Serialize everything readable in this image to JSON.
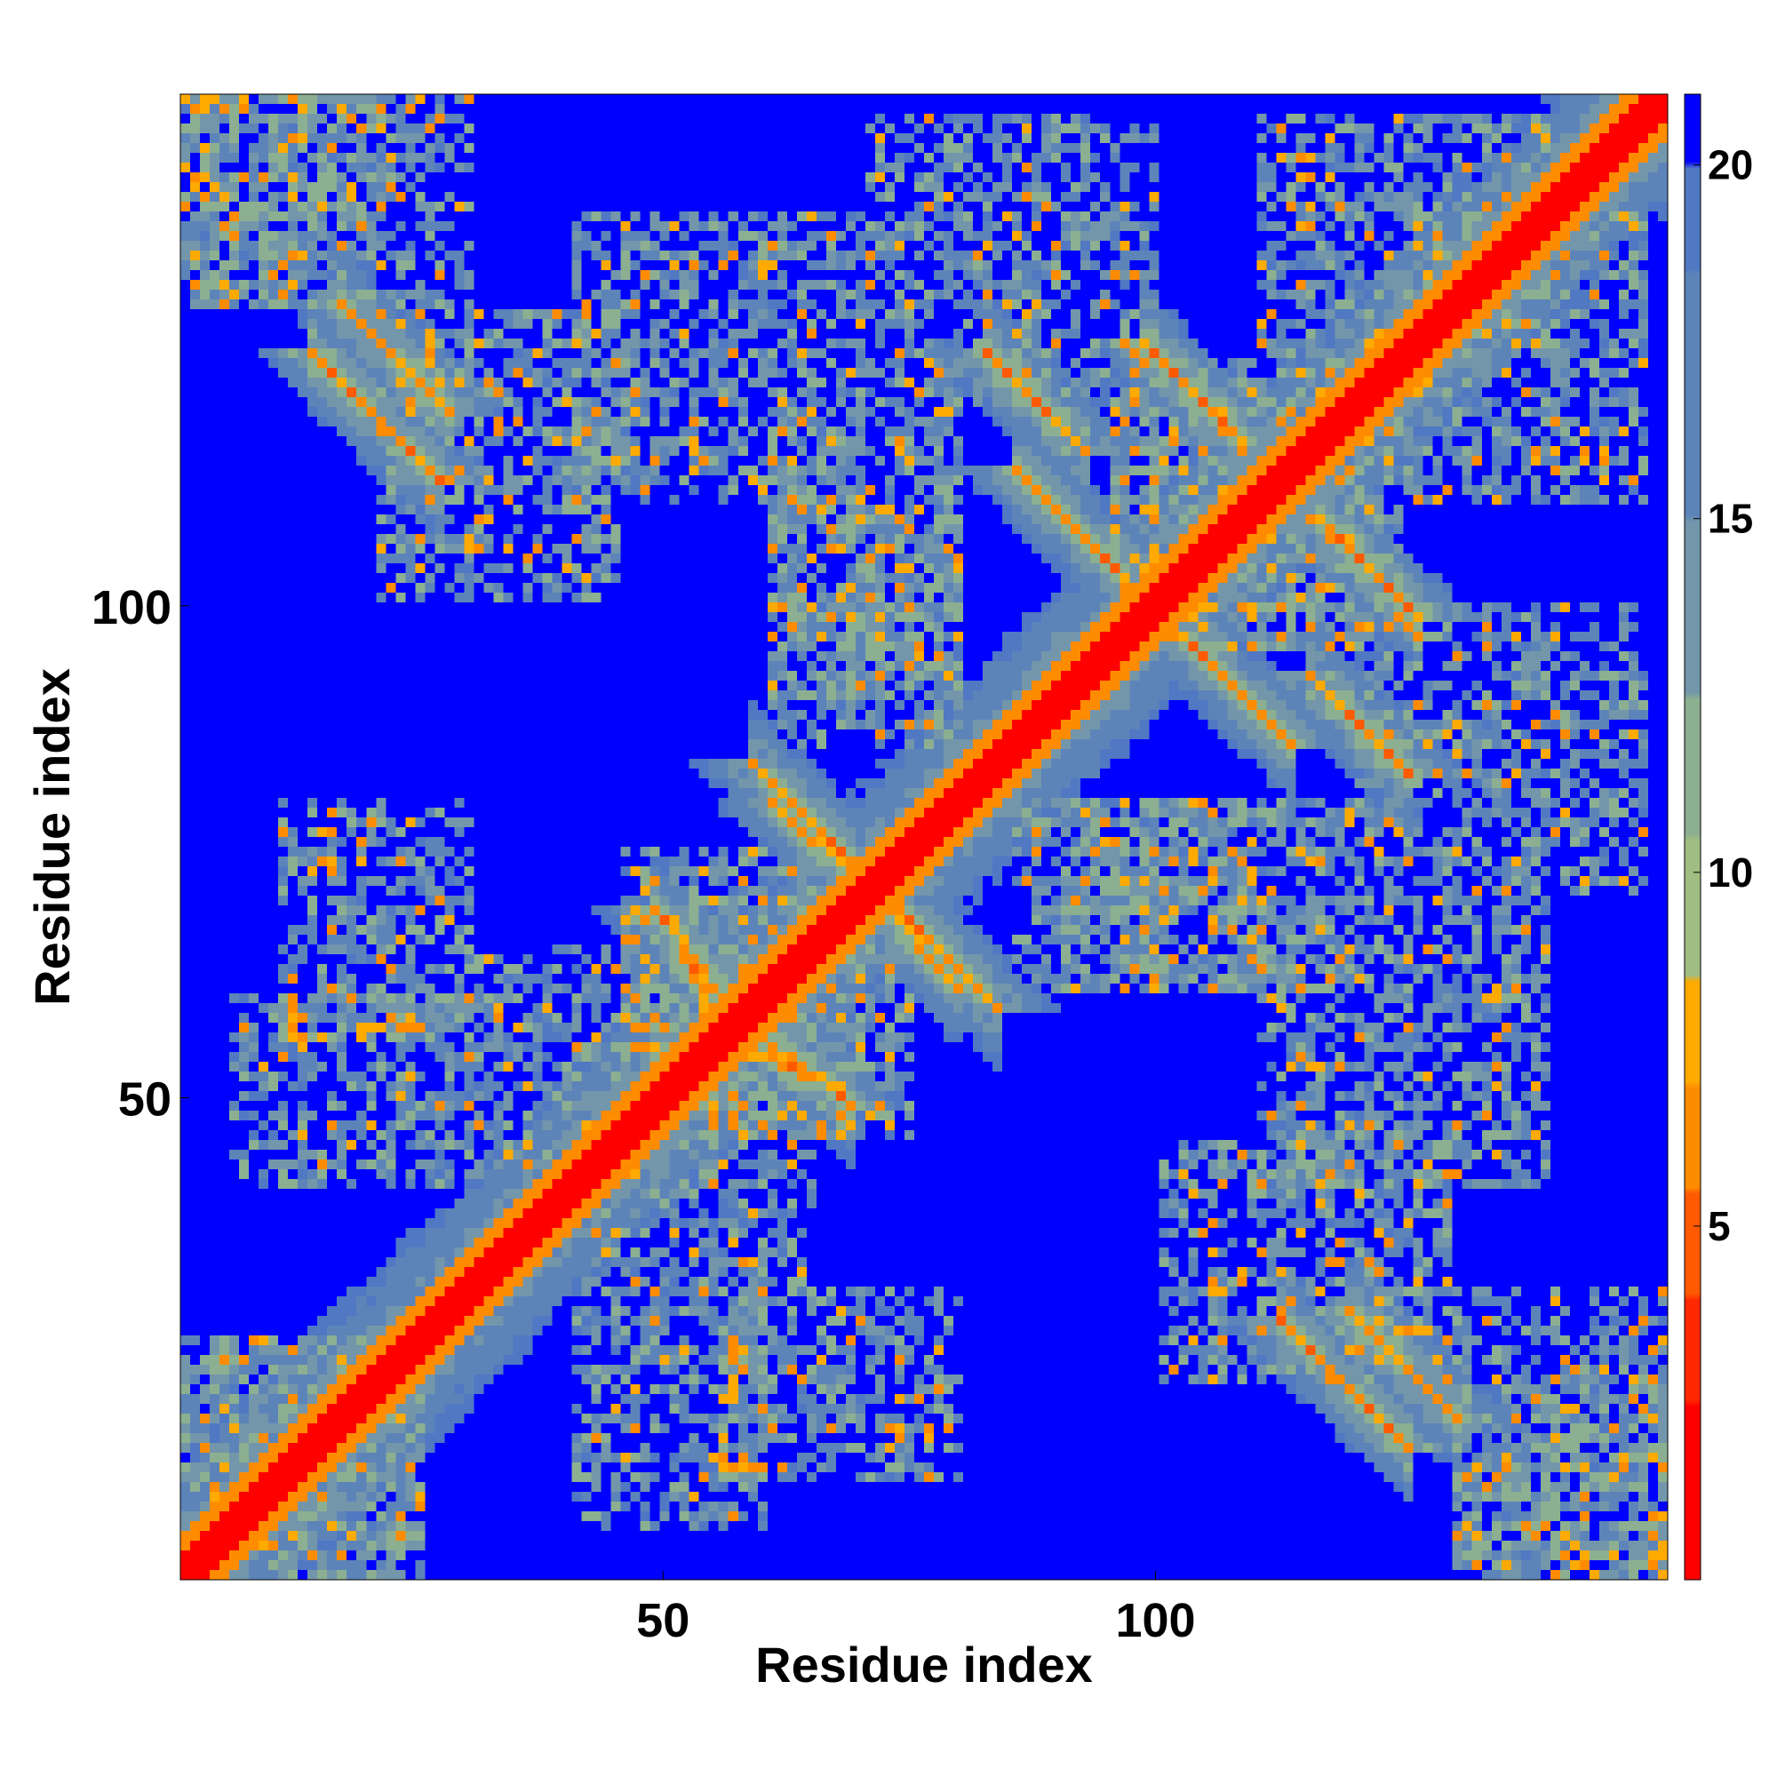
{
  "chart_data": {
    "type": "heatmap",
    "title": "",
    "xlabel": "Residue index",
    "ylabel": "Residue index",
    "n_residues": 152,
    "xlim": [
      1,
      152
    ],
    "ylim": [
      1,
      152
    ],
    "x_ticks": [
      50,
      100
    ],
    "y_ticks": [
      50,
      100
    ],
    "colorbar": {
      "ticks": [
        5,
        10,
        15,
        20
      ],
      "range": [
        0,
        21
      ],
      "colors": {
        "low": "#ff0000",
        "mid_low": "#ff8c00",
        "mid": "#ffa500",
        "mid_high": "#8fbc8f",
        "high": "#5b8db8",
        "max": "#0000ff"
      }
    },
    "features": {
      "diagonal": "distance 0 along i=j",
      "contacts_antiparallel": [
        {
          "i_range": [
            17,
            28
          ],
          "j_range": [
            131,
            120
          ]
        },
        {
          "i_range": [
            86,
            96
          ],
          "j_range": [
            114,
            104
          ]
        },
        {
          "i_range": [
            99,
            109
          ],
          "j_range": [
            127,
            117
          ]
        },
        {
          "i_range": [
            116,
            126
          ],
          "j_range": [
            93,
            83
          ]
        },
        {
          "i_range": [
            59,
            70
          ],
          "j_range": [
            84,
            73
          ]
        },
        {
          "i_range": [
            71,
            80
          ],
          "j_range": [
            71,
            61
          ]
        },
        {
          "i_range": [
            52,
            58
          ],
          "j_range": [
            64,
            58
          ]
        },
        {
          "i_range": [
            63,
            69
          ],
          "j_range": [
            54,
            49
          ]
        },
        {
          "i_range": [
            113,
            126
          ],
          "j_range": [
            27,
            14
          ]
        }
      ],
      "contacts_parallel": [
        {
          "i_range": [
            138,
            150
          ],
          "j_range": [
            138,
            150
          ]
        }
      ]
    }
  }
}
